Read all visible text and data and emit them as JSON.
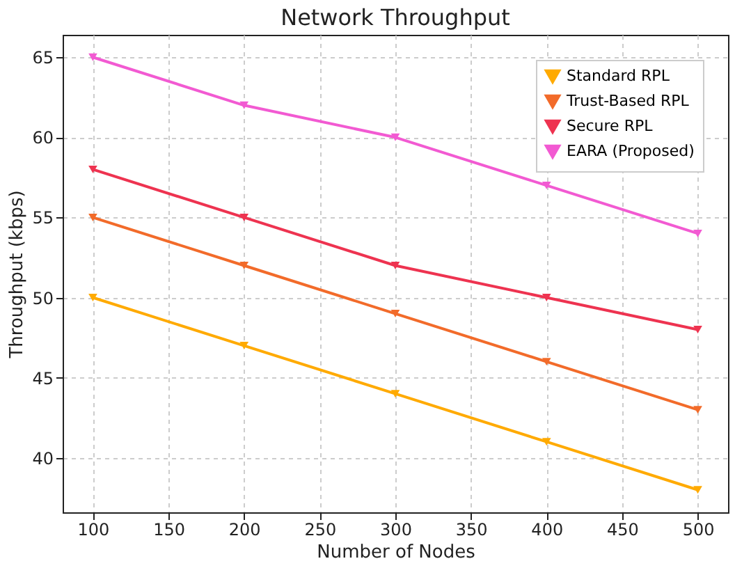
{
  "chart_data": {
    "type": "line",
    "title": "Network Throughput",
    "xlabel": "Number of Nodes",
    "ylabel": "Throughput (kbps)",
    "x": [
      100,
      200,
      300,
      400,
      500
    ],
    "series": [
      {
        "name": "Standard RPL",
        "color": "#ffaa00",
        "values": [
          50,
          47,
          44,
          41,
          38
        ]
      },
      {
        "name": "Trust-Based RPL",
        "color": "#f26b2a",
        "values": [
          55,
          52,
          49,
          46,
          43
        ]
      },
      {
        "name": "Secure RPL",
        "color": "#ee3350",
        "values": [
          58,
          55,
          52,
          50,
          48
        ]
      },
      {
        "name": "EARA (Proposed)",
        "color": "#f25ad2",
        "values": [
          65,
          62,
          60,
          57,
          54
        ]
      }
    ],
    "xlim": [
      80,
      520
    ],
    "ylim": [
      36.6,
      66.4
    ],
    "xticks": [
      100,
      150,
      200,
      250,
      300,
      350,
      400,
      450,
      500
    ],
    "yticks": [
      40,
      45,
      50,
      55,
      60,
      65
    ],
    "grid": true,
    "legend": "top right",
    "marker": "triangle",
    "line_style": "solid"
  }
}
